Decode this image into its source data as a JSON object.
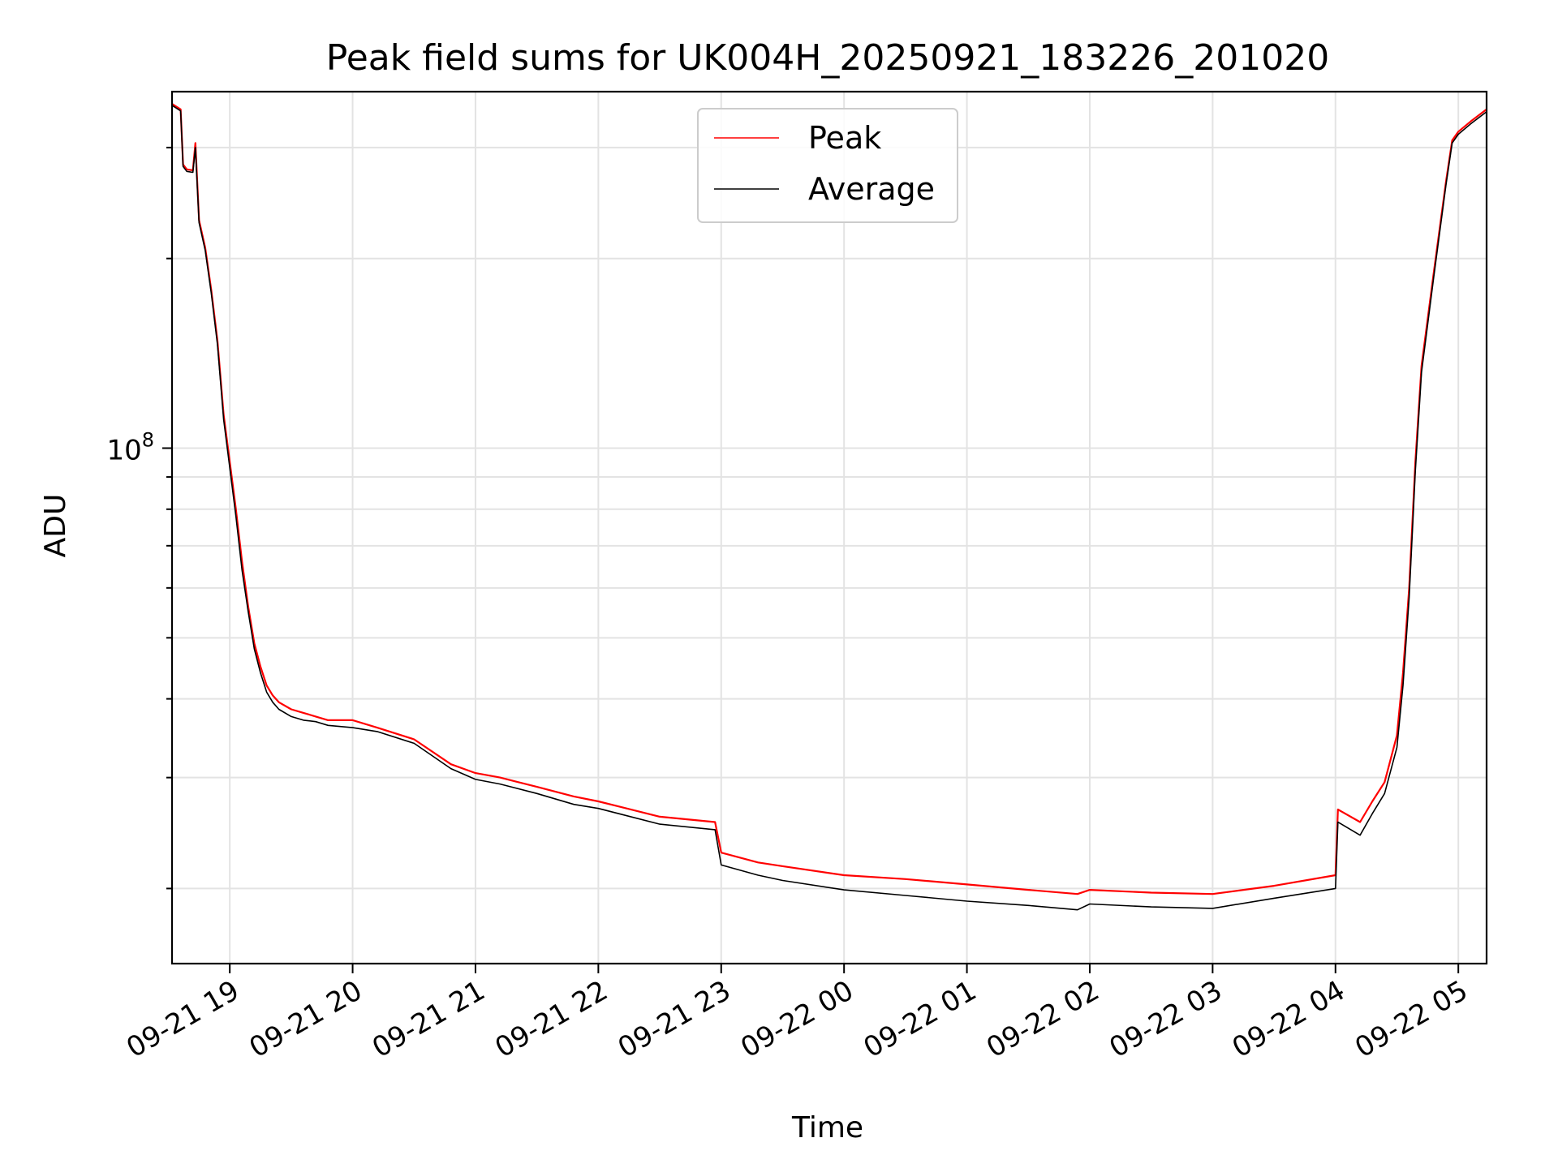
{
  "chart_data": {
    "type": "line",
    "title": "Peak field sums for UK004H_20250921_183226_201020",
    "xlabel": "Time",
    "ylabel": "ADU",
    "yscale": "log",
    "ylim": [
      15200000,
      368000000
    ],
    "xlim": [
      18.53,
      29.23
    ],
    "x_unit": "hours since 2025-09-21 00:00",
    "grid": true,
    "legend_position": "upper center",
    "x_ticks": [
      {
        "value": 19,
        "label": "09-21 19"
      },
      {
        "value": 20,
        "label": "09-21 20"
      },
      {
        "value": 21,
        "label": "09-21 21"
      },
      {
        "value": 22,
        "label": "09-21 22"
      },
      {
        "value": 23,
        "label": "09-21 23"
      },
      {
        "value": 24,
        "label": "09-22 00"
      },
      {
        "value": 25,
        "label": "09-22 01"
      },
      {
        "value": 26,
        "label": "09-22 02"
      },
      {
        "value": 27,
        "label": "09-22 03"
      },
      {
        "value": 28,
        "label": "09-22 04"
      },
      {
        "value": 29,
        "label": "09-22 05"
      }
    ],
    "y_major_ticks": [
      {
        "value": 100000000,
        "base": "10",
        "exponent": "8"
      }
    ],
    "y_minor_ticks": [
      20000000,
      30000000,
      40000000,
      50000000,
      60000000,
      70000000,
      80000000,
      90000000,
      200000000,
      300000000
    ],
    "series": [
      {
        "name": "Peak",
        "color": "#ff0000",
        "x": [
          18.53,
          18.6,
          18.62,
          18.65,
          18.7,
          18.72,
          18.75,
          18.8,
          18.85,
          18.9,
          18.95,
          19.0,
          19.05,
          19.1,
          19.15,
          19.2,
          19.25,
          19.3,
          19.35,
          19.4,
          19.5,
          19.6,
          19.7,
          19.8,
          20.0,
          20.2,
          20.5,
          20.8,
          21.0,
          21.2,
          21.5,
          21.8,
          22.0,
          22.5,
          22.95,
          23.0,
          23.3,
          23.5,
          24.0,
          24.5,
          25.0,
          25.5,
          25.9,
          26.0,
          26.5,
          27.0,
          27.5,
          28.0,
          28.02,
          28.2,
          28.3,
          28.4,
          28.5,
          28.55,
          28.6,
          28.65,
          28.7,
          28.8,
          28.9,
          28.95,
          29.0,
          29.1,
          29.23
        ],
        "y": [
          352000000,
          345000000,
          282000000,
          277000000,
          276000000,
          305000000,
          230000000,
          208000000,
          178000000,
          148000000,
          113000000,
          95000000,
          80000000,
          66000000,
          56000000,
          49000000,
          45000000,
          42000000,
          40500000,
          39500000,
          38500000,
          38000000,
          37500000,
          37000000,
          37000000,
          36000000,
          34500000,
          31500000,
          30500000,
          30000000,
          29000000,
          28000000,
          27500000,
          26000000,
          25500000,
          22800000,
          22000000,
          21700000,
          21000000,
          20700000,
          20300000,
          19900000,
          19600000,
          19900000,
          19700000,
          19600000,
          20200000,
          21000000,
          26700000,
          25500000,
          27500000,
          29500000,
          35000000,
          44000000,
          60000000,
          95000000,
          135000000,
          190000000,
          265000000,
          308000000,
          318000000,
          330000000,
          345000000
        ]
      },
      {
        "name": "Average",
        "color": "#000000",
        "x": [
          18.53,
          18.6,
          18.62,
          18.65,
          18.7,
          18.72,
          18.75,
          18.8,
          18.85,
          18.9,
          18.95,
          19.0,
          19.05,
          19.1,
          19.15,
          19.2,
          19.25,
          19.3,
          19.35,
          19.4,
          19.5,
          19.6,
          19.7,
          19.8,
          20.0,
          20.2,
          20.5,
          20.8,
          21.0,
          21.2,
          21.5,
          21.8,
          22.0,
          22.5,
          22.95,
          23.0,
          23.3,
          23.5,
          24.0,
          24.5,
          25.0,
          25.5,
          25.9,
          26.0,
          26.5,
          27.0,
          27.5,
          28.0,
          28.02,
          28.2,
          28.3,
          28.4,
          28.5,
          28.55,
          28.6,
          28.65,
          28.7,
          28.8,
          28.9,
          28.95,
          29.0,
          29.1,
          29.23
        ],
        "y": [
          350000000,
          343000000,
          280000000,
          275000000,
          274000000,
          300000000,
          228000000,
          206000000,
          176000000,
          146000000,
          111000000,
          93000000,
          78000000,
          64000000,
          55000000,
          48000000,
          44000000,
          41000000,
          39500000,
          38500000,
          37500000,
          37000000,
          36800000,
          36300000,
          36000000,
          35500000,
          34000000,
          31000000,
          29800000,
          29300000,
          28300000,
          27200000,
          26800000,
          25300000,
          24800000,
          21800000,
          21000000,
          20600000,
          19900000,
          19500000,
          19100000,
          18800000,
          18500000,
          18900000,
          18700000,
          18600000,
          19300000,
          20000000,
          25500000,
          24300000,
          26300000,
          28300000,
          33500000,
          42000000,
          58000000,
          92000000,
          132000000,
          187000000,
          262000000,
          305000000,
          315000000,
          327000000,
          342000000
        ]
      }
    ]
  }
}
